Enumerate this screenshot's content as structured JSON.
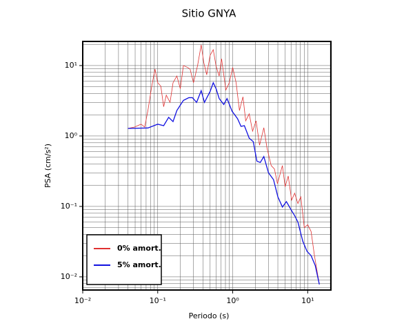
{
  "chart_data": {
    "type": "line",
    "title": "Sitio GNYA",
    "xlabel": "Periodo (s)",
    "ylabel": "PSA (cm/s²)",
    "xscale": "log",
    "yscale": "log",
    "grid": true,
    "legend": "lower left",
    "xlim": [
      0.01,
      20.4
    ],
    "ylim": [
      0.0065,
      22
    ],
    "xticks": [
      {
        "value": 0.01,
        "label": "10⁻²"
      },
      {
        "value": 0.1,
        "label": "10⁻¹"
      },
      {
        "value": 1,
        "label": "10⁰"
      },
      {
        "value": 10,
        "label": "10¹"
      }
    ],
    "yticks": [
      {
        "value": 0.01,
        "label": "10⁻²"
      },
      {
        "value": 0.1,
        "label": "10⁻¹"
      },
      {
        "value": 1,
        "label": "10⁰"
      },
      {
        "value": 10,
        "label": "10¹"
      }
    ],
    "xminorticks": [
      0.02,
      0.03,
      0.04,
      0.05,
      0.06,
      0.07,
      0.08,
      0.09,
      0.2,
      0.3,
      0.4,
      0.5,
      0.6,
      0.7,
      0.8,
      0.9,
      2,
      3,
      4,
      5,
      6,
      7,
      8,
      9,
      20
    ],
    "yminorticks": [
      0.007,
      0.008,
      0.009,
      0.02,
      0.03,
      0.04,
      0.05,
      0.06,
      0.07,
      0.08,
      0.09,
      0.2,
      0.3,
      0.4,
      0.5,
      0.6,
      0.7,
      0.8,
      0.9,
      2,
      3,
      4,
      5,
      6,
      7,
      8,
      9,
      20
    ],
    "series": [
      {
        "name": "0% amort.",
        "color": "#e03030",
        "x": [
          0.04,
          0.049,
          0.06,
          0.067,
          0.074,
          0.083,
          0.092,
          0.1,
          0.11,
          0.12,
          0.13,
          0.146,
          0.16,
          0.18,
          0.2,
          0.22,
          0.25,
          0.27,
          0.3,
          0.34,
          0.38,
          0.41,
          0.45,
          0.5,
          0.55,
          0.6,
          0.66,
          0.71,
          0.81,
          0.9,
          1.0,
          1.11,
          1.23,
          1.37,
          1.49,
          1.66,
          1.84,
          2.05,
          2.28,
          2.6,
          2.87,
          3.26,
          3.6,
          3.95,
          4.6,
          5.0,
          5.5,
          6.1,
          6.7,
          7.4,
          8.1,
          9.0,
          10,
          11.1,
          12.3,
          14.3
        ],
        "values": [
          1.28,
          1.34,
          1.47,
          1.34,
          2.3,
          5.0,
          8.9,
          5.7,
          5.1,
          2.6,
          3.8,
          3.0,
          5.7,
          7.1,
          4.7,
          10,
          9.4,
          8.9,
          5.7,
          10,
          19.7,
          11.2,
          7.4,
          14,
          16.8,
          9.8,
          7.1,
          12.5,
          4.5,
          5.7,
          9.4,
          5.7,
          2.3,
          3.6,
          1.64,
          2.06,
          1.17,
          1.64,
          0.74,
          1.31,
          0.67,
          0.38,
          0.34,
          0.21,
          0.38,
          0.19,
          0.27,
          0.123,
          0.154,
          0.11,
          0.137,
          0.05,
          0.055,
          0.044,
          0.02,
          0.0078
        ]
      },
      {
        "name": "5% amort.",
        "color": "#1010e0",
        "x": [
          0.04,
          0.074,
          0.1,
          0.12,
          0.14,
          0.16,
          0.18,
          0.22,
          0.26,
          0.29,
          0.33,
          0.38,
          0.42,
          0.5,
          0.55,
          0.6,
          0.66,
          0.76,
          0.84,
          0.98,
          1.16,
          1.29,
          1.43,
          1.66,
          1.88,
          2.1,
          2.33,
          2.6,
          3.0,
          3.5,
          4.0,
          4.6,
          5.2,
          6.1,
          6.7,
          7.4,
          8.6,
          9.8,
          11.1,
          12.6,
          14.3
        ],
        "values": [
          1.28,
          1.3,
          1.47,
          1.4,
          1.84,
          1.6,
          2.3,
          3.2,
          3.5,
          3.5,
          3.0,
          4.4,
          3.0,
          4.3,
          5.7,
          4.7,
          3.4,
          2.8,
          3.4,
          2.25,
          1.76,
          1.37,
          1.4,
          0.93,
          0.83,
          0.44,
          0.42,
          0.51,
          0.3,
          0.24,
          0.137,
          0.098,
          0.117,
          0.087,
          0.074,
          0.06,
          0.032,
          0.023,
          0.02,
          0.0145,
          0.0078
        ]
      }
    ]
  }
}
